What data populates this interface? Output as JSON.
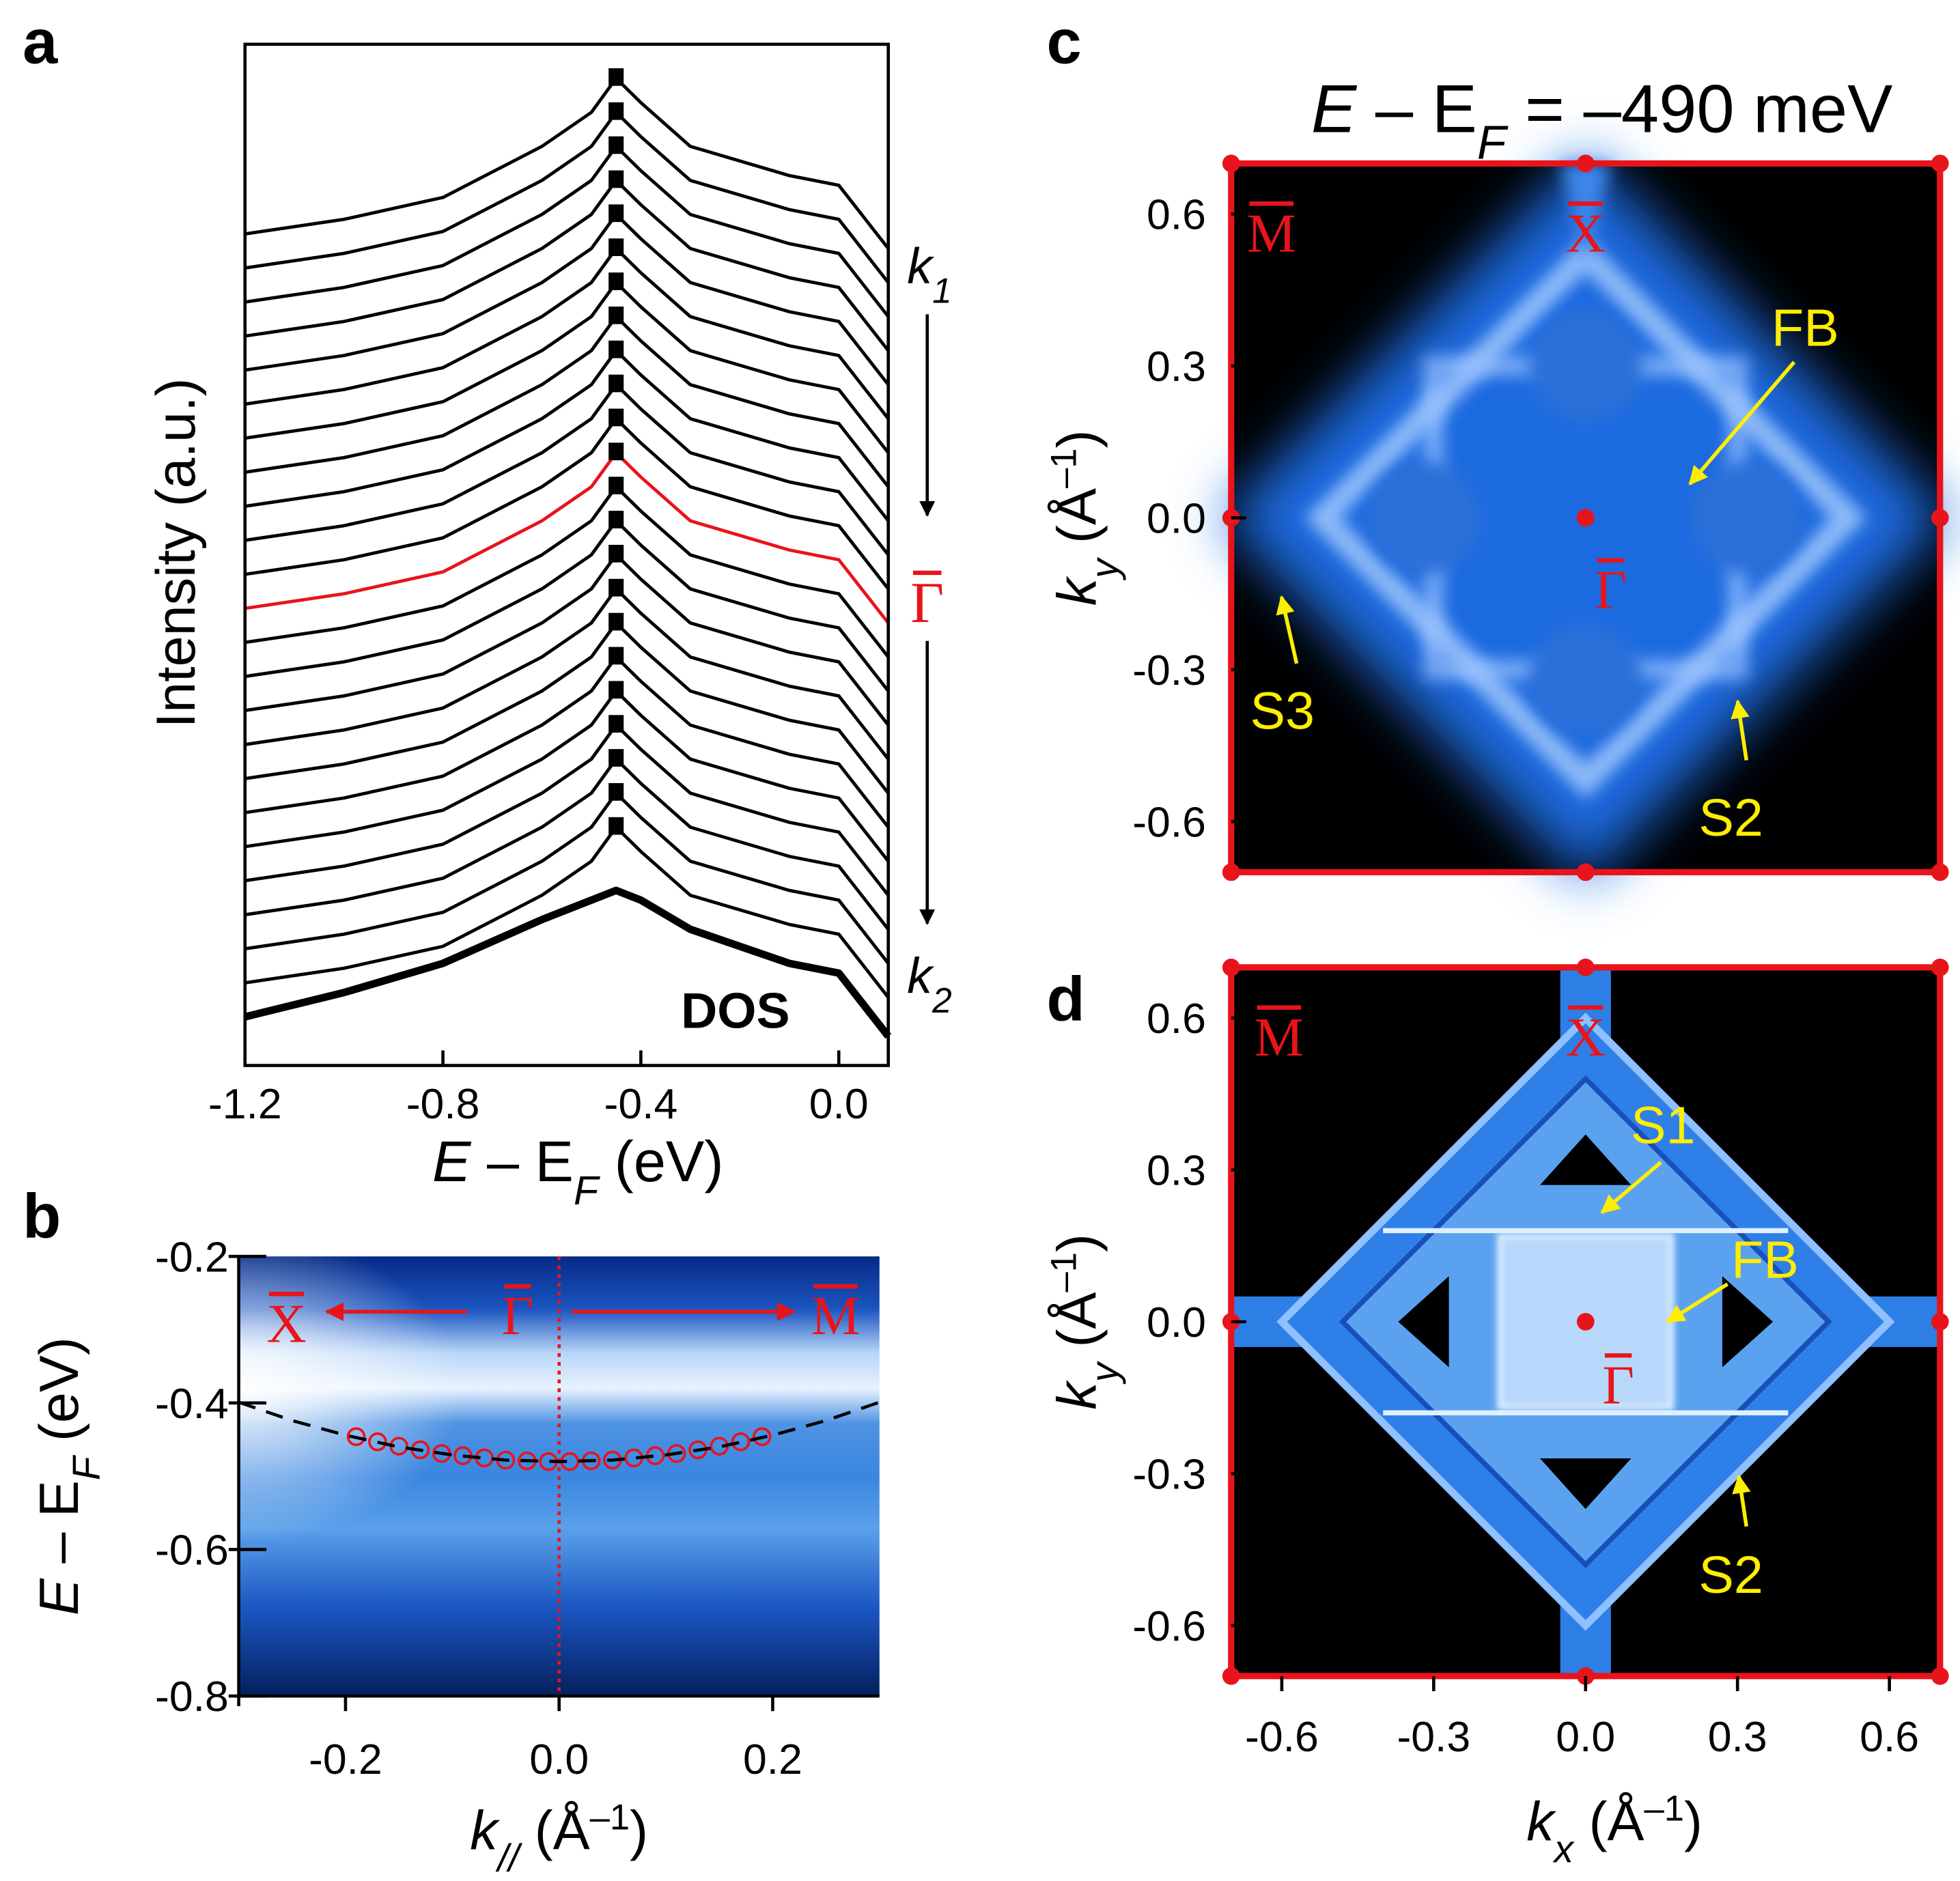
{
  "chart_data": [
    {
      "type": "line",
      "panel": "a",
      "ylabel": "Intensity (a.u.)",
      "xlabel": [
        "E",
        " – E",
        "F",
        " (eV)"
      ],
      "xlim": [
        -1.2,
        0.1
      ],
      "xticks": [
        -1.2,
        -0.8,
        -0.4,
        {
          "value": 0,
          "label": "0.0"
        }
      ],
      "ylim": [
        -1.0,
        20
      ],
      "annotations": {
        "k1": [
          "k",
          "1"
        ],
        "gamma": "Γ",
        "k2": [
          "k",
          "2"
        ],
        "dos": "DOS"
      },
      "x": [
        -1.2,
        -1.0,
        -0.8,
        -0.6,
        -0.5,
        -0.45,
        -0.4,
        -0.3,
        -0.1,
        0.0,
        0.1
      ],
      "series": [
        {
          "color": "#000000",
          "values": [
            16.1,
            16.4,
            16.85,
            17.9,
            18.6,
            19.3,
            18.8,
            17.9,
            17.3,
            17.1,
            15.8
          ]
        },
        {
          "color": "#000000",
          "values": [
            15.4,
            15.7,
            16.15,
            17.2,
            17.9,
            18.6,
            18.1,
            17.2,
            16.6,
            16.4,
            15.1
          ]
        },
        {
          "color": "#000000",
          "values": [
            14.7,
            15.0,
            15.45,
            16.5,
            17.2,
            17.9,
            17.4,
            16.5,
            15.9,
            15.7,
            14.4
          ]
        },
        {
          "color": "#000000",
          "values": [
            14.0,
            14.3,
            14.75,
            15.8,
            16.5,
            17.2,
            16.7,
            15.8,
            15.2,
            15.0,
            13.7
          ]
        },
        {
          "color": "#000000",
          "values": [
            13.3,
            13.6,
            14.05,
            15.1,
            15.8,
            16.5,
            16.0,
            15.1,
            14.5,
            14.3,
            13.0
          ]
        },
        {
          "color": "#000000",
          "values": [
            12.6,
            12.9,
            13.35,
            14.4,
            15.1,
            15.8,
            15.3,
            14.4,
            13.8,
            13.6,
            12.3
          ]
        },
        {
          "color": "#000000",
          "values": [
            11.9,
            12.2,
            12.65,
            13.7,
            14.4,
            15.1,
            14.6,
            13.7,
            13.1,
            12.9,
            11.6
          ]
        },
        {
          "color": "#000000",
          "values": [
            11.2,
            11.5,
            11.95,
            13.0,
            13.7,
            14.4,
            13.9,
            13.0,
            12.4,
            12.2,
            10.9
          ]
        },
        {
          "color": "#000000",
          "values": [
            10.5,
            10.8,
            11.25,
            12.3,
            13.0,
            13.7,
            13.2,
            12.3,
            11.7,
            11.5,
            10.2
          ]
        },
        {
          "color": "#000000",
          "values": [
            9.8,
            10.1,
            10.55,
            11.6,
            12.3,
            13.0,
            12.5,
            11.6,
            11.0,
            10.8,
            9.5
          ]
        },
        {
          "color": "#000000",
          "values": [
            9.1,
            9.4,
            9.85,
            10.9,
            11.6,
            12.3,
            11.8,
            10.9,
            10.3,
            10.1,
            8.8
          ]
        },
        {
          "color": "#e8141b",
          "values": [
            8.4,
            8.7,
            9.15,
            10.2,
            10.9,
            11.6,
            11.1,
            10.2,
            9.6,
            9.4,
            8.1
          ]
        },
        {
          "color": "#000000",
          "values": [
            7.7,
            8.0,
            8.45,
            9.5,
            10.2,
            10.9,
            10.4,
            9.5,
            8.9,
            8.7,
            7.4
          ]
        },
        {
          "color": "#000000",
          "values": [
            7.0,
            7.3,
            7.75,
            8.8,
            9.5,
            10.2,
            9.7,
            8.8,
            8.2,
            8.0,
            6.7
          ]
        },
        {
          "color": "#000000",
          "values": [
            6.3,
            6.6,
            7.05,
            8.1,
            8.8,
            9.5,
            9.0,
            8.1,
            7.5,
            7.3,
            6.0
          ]
        },
        {
          "color": "#000000",
          "values": [
            5.6,
            5.9,
            6.35,
            7.4,
            8.1,
            8.8,
            8.3,
            7.4,
            6.8,
            6.6,
            5.3
          ]
        },
        {
          "color": "#000000",
          "values": [
            4.9,
            5.2,
            5.65,
            6.7,
            7.4,
            8.1,
            7.6,
            6.7,
            6.1,
            5.9,
            4.6
          ]
        },
        {
          "color": "#000000",
          "values": [
            4.2,
            4.5,
            4.95,
            6.0,
            6.7,
            7.4,
            6.9,
            6.0,
            5.4,
            5.2,
            3.9
          ]
        },
        {
          "color": "#000000",
          "values": [
            3.5,
            3.8,
            4.25,
            5.3,
            6.0,
            6.7,
            6.2,
            5.3,
            4.7,
            4.5,
            3.2
          ]
        },
        {
          "color": "#000000",
          "values": [
            2.8,
            3.1,
            3.55,
            4.6,
            5.3,
            6.0,
            5.5,
            4.6,
            4.0,
            3.8,
            2.5
          ]
        },
        {
          "color": "#000000",
          "values": [
            2.1,
            2.4,
            2.85,
            3.9,
            4.6,
            5.3,
            4.8,
            3.9,
            3.3,
            3.1,
            1.8
          ]
        },
        {
          "color": "#000000",
          "values": [
            1.4,
            1.7,
            2.15,
            3.2,
            3.9,
            4.6,
            4.1,
            3.2,
            2.6,
            2.4,
            1.1
          ]
        },
        {
          "color": "#000000",
          "values": [
            0.7,
            1.0,
            1.45,
            2.5,
            3.2,
            3.9,
            3.4,
            2.5,
            1.9,
            1.7,
            0.4
          ]
        },
        {
          "name": "DOS",
          "color": "#000000",
          "values": [
            0,
            0.5,
            1.1,
            2.0,
            2.4,
            2.6,
            2.4,
            1.8,
            1.1,
            0.9,
            -0.4
          ]
        }
      ]
    },
    {
      "type": "scatter",
      "panel": "b",
      "xlabel": [
        "k",
        "//",
        " (Å",
        "–1",
        ")"
      ],
      "ylabel": [
        "E",
        " – E",
        "F",
        " (eV)"
      ],
      "xlim": [
        -0.3,
        0.3
      ],
      "xticks": [
        -0.2,
        {
          "value": 0,
          "label": "0.0"
        },
        0.2
      ],
      "ylim": [
        -0.8,
        -0.2
      ],
      "yticks": [
        -0.8,
        -0.6,
        -0.4,
        -0.2
      ],
      "annotations": {
        "left": "X",
        "center": "Γ",
        "right": "M"
      },
      "series": [
        {
          "marker": "circle",
          "color": "#e8141b",
          "x": [
            -0.19,
            -0.17,
            -0.15,
            -0.13,
            -0.11,
            -0.09,
            -0.07,
            -0.05,
            -0.03,
            -0.01,
            0.01,
            0.03,
            0.05,
            0.07,
            0.09,
            0.11,
            0.13,
            0.15,
            0.17,
            0.19
          ],
          "values": [
            -0.446,
            -0.453,
            -0.459,
            -0.464,
            -0.469,
            -0.472,
            -0.475,
            -0.478,
            -0.479,
            -0.48,
            -0.48,
            -0.479,
            -0.478,
            -0.475,
            -0.472,
            -0.469,
            -0.464,
            -0.459,
            -0.453,
            -0.446
          ]
        },
        {
          "line_style": "dashed",
          "color": "#000000",
          "x": [
            -0.3,
            -0.25,
            -0.2,
            -0.15,
            -0.1,
            -0.05,
            0,
            0.05,
            0.1,
            0.15,
            0.2,
            0.25,
            0.3
          ],
          "values": [
            -0.399,
            -0.424,
            -0.444,
            -0.46,
            -0.471,
            -0.478,
            -0.48,
            -0.478,
            -0.471,
            -0.46,
            -0.444,
            -0.424,
            -0.399
          ]
        }
      ]
    },
    {
      "type": "map",
      "panel": "c",
      "title": [
        "E",
        " – E",
        "F",
        " = –490 meV"
      ],
      "ylabel": [
        "k",
        "y",
        " (Å",
        "–1",
        ")"
      ],
      "xlim": [
        -0.7,
        0.7
      ],
      "ylim": [
        -0.7,
        0.7
      ],
      "yticks": [
        -0.6,
        -0.3,
        {
          "value": 0,
          "label": "0.0"
        },
        0.3,
        0.6
      ],
      "annotations": {
        "M": "M",
        "X": "X",
        "G": "Γ",
        "FB": "FB",
        "S3": "S3",
        "S2": "S2"
      }
    },
    {
      "type": "map",
      "panel": "d",
      "xlabel": [
        "k",
        "x",
        " (Å",
        "–1",
        ")"
      ],
      "ylabel": [
        "k",
        "y",
        " (Å",
        "–1",
        ")"
      ],
      "xlim": [
        -0.7,
        0.7
      ],
      "ylim": [
        -0.7,
        0.7
      ],
      "xticks": [
        -0.6,
        -0.3,
        {
          "value": 0,
          "label": "0.0"
        },
        0.3,
        0.6
      ],
      "yticks": [
        -0.6,
        -0.3,
        {
          "value": 0,
          "label": "0.0"
        },
        0.3,
        0.6
      ],
      "annotations": {
        "M": "M",
        "X": "X",
        "S1": "S1",
        "FB": "FB",
        "G": "Γ",
        "S2": "S2"
      }
    }
  ]
}
